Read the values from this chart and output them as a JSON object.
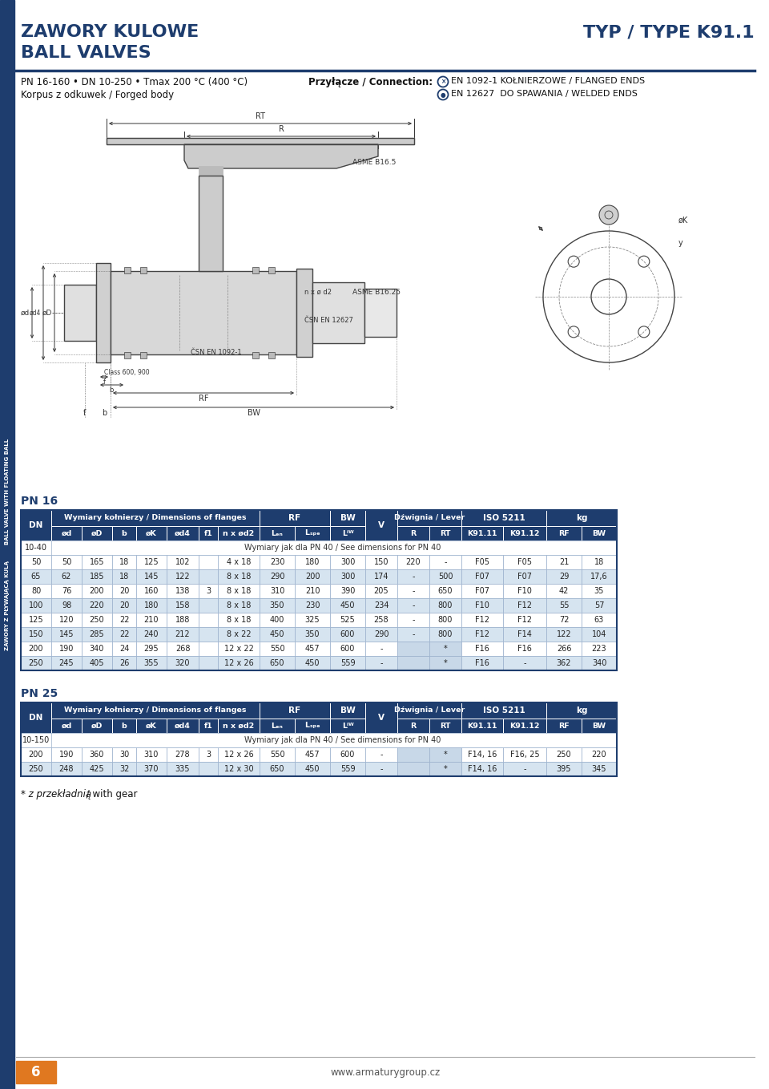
{
  "title_line1": "ZAWORY KULOWE",
  "title_line2": "BALL VALVES",
  "type_label": "TYP / TYPE K91.1",
  "blue": "#1e3d6e",
  "light_blue_row": "#d6e4f0",
  "white": "#ffffff",
  "gray_row": "#eef3f8",
  "subtitle1": "PN 16-160 • DN 10-250 • Tmax 200 °C (400 °C)",
  "subtitle2": "Korpus z odkuwek / Forged body",
  "conn_label": "Przyłącze / Connection:",
  "conn1": "EN 1092-1 KOŁNIERZOWE / FLANGED ENDS",
  "conn2": "EN 12627  DO SPAWANIA / WELDED ENDS",
  "pn16_label": "PN 16",
  "pn25_label": "PN 25",
  "footnote": "* z przekładnią / with gear",
  "page": "6",
  "website": "www.armaturygroup.cz",
  "side_text": "ZAWORY Z PŁYWAJĄCĄ KULĄ        BALL VALVE WITH FLOATING BALL",
  "pn16_rows": [
    {
      "DN": "10-40",
      "special": "Wymiary jak dla PN 40 / See dimensions for PN 40"
    },
    {
      "DN": "50",
      "od": "50",
      "oD": "165",
      "b": "18",
      "oK": "125",
      "od4": "102",
      "f1": "",
      "nxod2": "4 x 18",
      "Len": "230",
      "Lspec": "180",
      "Lbw": "300",
      "V": "150",
      "R": "220",
      "RT": "-",
      "K9111": "F05",
      "K9112": "F05",
      "RF": "21",
      "BW": "18"
    },
    {
      "DN": "65",
      "od": "62",
      "oD": "185",
      "b": "18",
      "oK": "145",
      "od4": "122",
      "f1": "",
      "nxod2": "8 x 18",
      "Len": "290",
      "Lspec": "200",
      "Lbw": "300",
      "V": "174",
      "R": "-",
      "RT": "500",
      "K9111": "F07",
      "K9112": "F07",
      "RF": "29",
      "BW": "17,6"
    },
    {
      "DN": "80",
      "od": "76",
      "oD": "200",
      "b": "20",
      "oK": "160",
      "od4": "138",
      "f1": "3",
      "nxod2": "8 x 18",
      "Len": "310",
      "Lspec": "210",
      "Lbw": "390",
      "V": "205",
      "R": "-",
      "RT": "650",
      "K9111": "F07",
      "K9112": "F10",
      "RF": "42",
      "BW": "35"
    },
    {
      "DN": "100",
      "od": "98",
      "oD": "220",
      "b": "20",
      "oK": "180",
      "od4": "158",
      "f1": "",
      "nxod2": "8 x 18",
      "Len": "350",
      "Lspec": "230",
      "Lbw": "450",
      "V": "234",
      "R": "-",
      "RT": "800",
      "K9111": "F10",
      "K9112": "F12",
      "RF": "55",
      "BW": "57"
    },
    {
      "DN": "125",
      "od": "120",
      "oD": "250",
      "b": "22",
      "oK": "210",
      "od4": "188",
      "f1": "",
      "nxod2": "8 x 18",
      "Len": "400",
      "Lspec": "325",
      "Lbw": "525",
      "V": "258",
      "R": "-",
      "RT": "800",
      "K9111": "F12",
      "K9112": "F12",
      "RF": "72",
      "BW": "63"
    },
    {
      "DN": "150",
      "od": "145",
      "oD": "285",
      "b": "22",
      "oK": "240",
      "od4": "212",
      "f1": "",
      "nxod2": "8 x 22",
      "Len": "450",
      "Lspec": "350",
      "Lbw": "600",
      "V": "290",
      "R": "-",
      "RT": "800",
      "K9111": "F12",
      "K9112": "F14",
      "RF": "122",
      "BW": "104"
    },
    {
      "DN": "200",
      "od": "190",
      "oD": "340",
      "b": "24",
      "oK": "295",
      "od4": "268",
      "f1": "",
      "nxod2": "12 x 22",
      "Len": "550",
      "Lspec": "457",
      "Lbw": "600",
      "V": "-",
      "R": "",
      "RT": "*",
      "K9111": "F16",
      "K9112": "F16",
      "RF": "266",
      "BW": "223"
    },
    {
      "DN": "250",
      "od": "245",
      "oD": "405",
      "b": "26",
      "oK": "355",
      "od4": "320",
      "f1": "",
      "nxod2": "12 x 26",
      "Len": "650",
      "Lspec": "450",
      "Lbw": "559",
      "V": "-",
      "R": "",
      "RT": "*",
      "K9111": "F16",
      "K9112": "-",
      "RF": "362",
      "BW": "340"
    }
  ],
  "pn25_rows": [
    {
      "DN": "10-150",
      "special": "Wymiary jak dla PN 40 / See dimensions for PN 40"
    },
    {
      "DN": "200",
      "od": "190",
      "oD": "360",
      "b": "30",
      "oK": "310",
      "od4": "278",
      "f1": "3",
      "nxod2": "12 x 26",
      "Len": "550",
      "Lspec": "457",
      "Lbw": "600",
      "V": "-",
      "R": "",
      "RT": "*",
      "K9111": "F14, 16",
      "K9112": "F16, 25",
      "RF": "250",
      "BW": "220"
    },
    {
      "DN": "250",
      "od": "248",
      "oD": "425",
      "b": "32",
      "oK": "370",
      "od4": "335",
      "f1": "",
      "nxod2": "12 x 30",
      "Len": "650",
      "Lspec": "450",
      "Lbw": "559",
      "V": "-",
      "R": "",
      "RT": "*",
      "K9111": "F14, 16",
      "K9112": "-",
      "RF": "395",
      "BW": "345"
    }
  ]
}
